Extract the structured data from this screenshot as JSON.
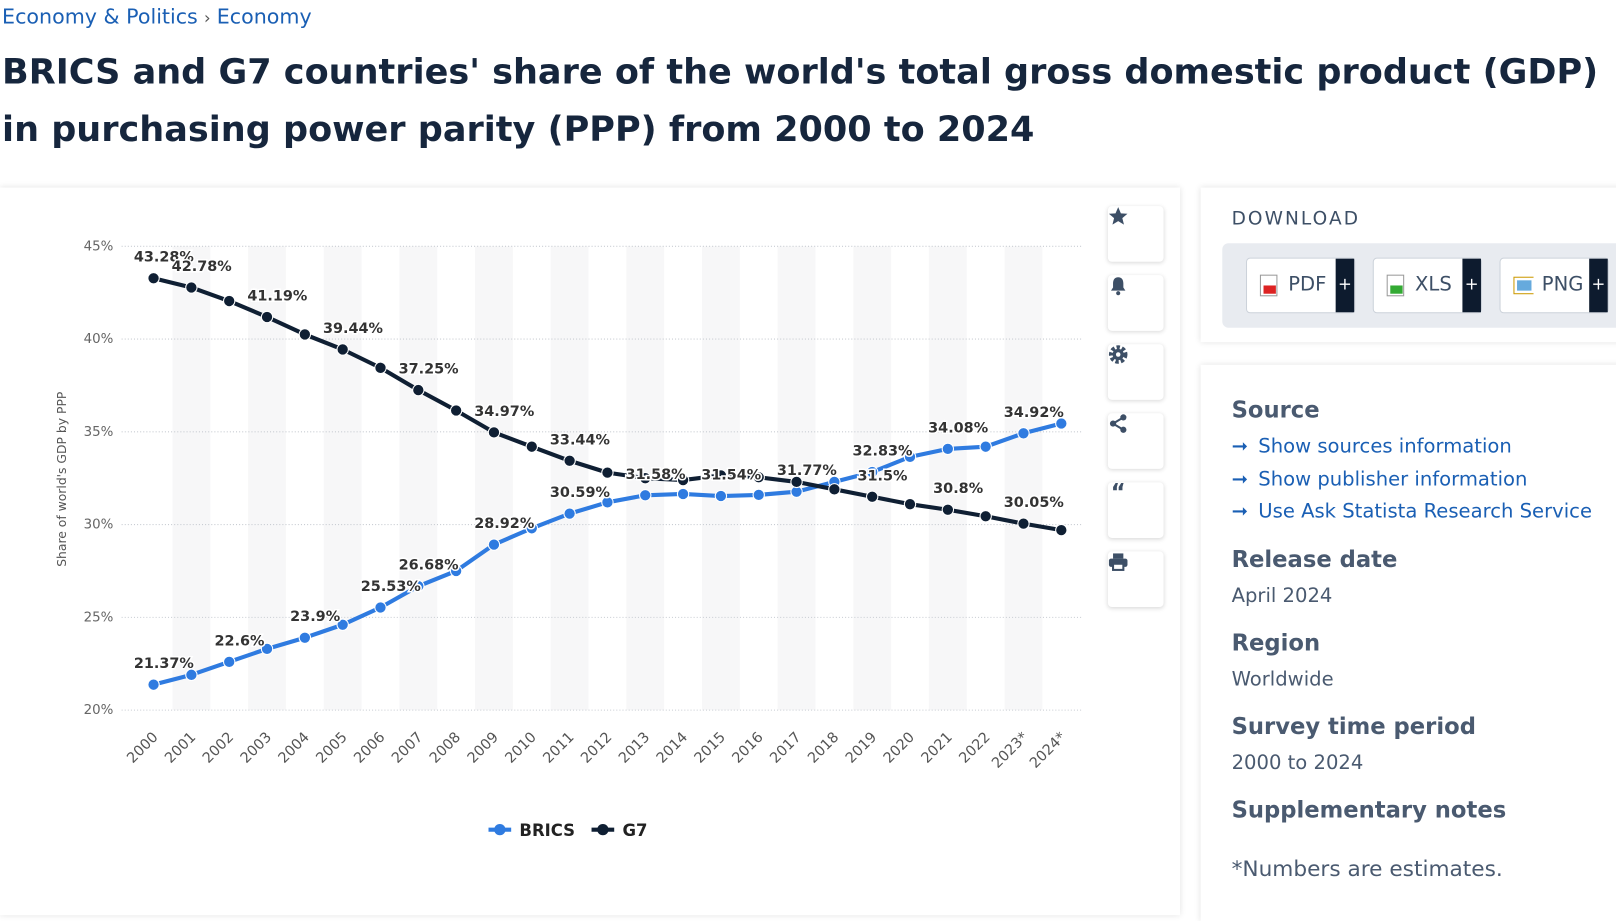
{
  "breadcrumb": [
    "Economy & Politics",
    "Economy"
  ],
  "header": {
    "title": "BRICS and G7 countries' share of the world's total gross domestic product (GDP) in purchasing power parity (PPP) from 2000 to 2024"
  },
  "download": {
    "title": "DOWNLOAD",
    "buttons": [
      {
        "label": "PDF",
        "plus": "+"
      },
      {
        "label": "XLS",
        "plus": "+"
      },
      {
        "label": "PNG",
        "plus": "+"
      }
    ]
  },
  "details": {
    "source": {
      "heading": "Source",
      "links": [
        "Show sources information",
        "Show publisher information",
        "Use Ask Statista Research Service"
      ]
    },
    "release": {
      "heading": "Release date",
      "value": "April 2024"
    },
    "region": {
      "heading": "Region",
      "value": "Worldwide"
    },
    "period": {
      "heading": "Survey time period",
      "value": "2000 to 2024"
    },
    "notes": {
      "heading": "Supplementary notes",
      "value": "*Numbers are estimates."
    }
  },
  "chart_data": {
    "type": "line",
    "ylabel": "Share of world's GDP by PPP",
    "categories": [
      "2000",
      "2001",
      "2002",
      "2003",
      "2004",
      "2005",
      "2006",
      "2007",
      "2008",
      "2009",
      "2010",
      "2011",
      "2012",
      "2013",
      "2014",
      "2015",
      "2016",
      "2017",
      "2018",
      "2019",
      "2020",
      "2021",
      "2022",
      "2023*",
      "2024*"
    ],
    "series": [
      {
        "name": "BRICS",
        "color": "#2f7be0",
        "values": [
          21.37,
          21.9,
          22.6,
          23.3,
          23.9,
          24.6,
          25.53,
          26.68,
          27.5,
          28.92,
          29.8,
          30.59,
          31.2,
          31.58,
          31.65,
          31.54,
          31.6,
          31.77,
          32.3,
          32.83,
          33.65,
          34.08,
          34.2,
          34.92,
          35.45
        ],
        "value_labels": [
          "21.37%",
          null,
          "22.6%",
          null,
          "23.9%",
          null,
          "25.53%",
          "26.68%",
          null,
          "28.92%",
          null,
          "30.59%",
          null,
          "31.58%",
          null,
          "31.54%",
          null,
          "31.77%",
          null,
          "32.83%",
          null,
          "34.08%",
          null,
          "34.92%",
          null
        ]
      },
      {
        "name": "G7",
        "color": "#0f1f33",
        "values": [
          43.28,
          42.78,
          42.05,
          41.19,
          40.25,
          39.44,
          38.45,
          37.25,
          36.15,
          34.97,
          34.2,
          33.44,
          32.8,
          32.5,
          32.4,
          32.65,
          32.55,
          32.3,
          31.9,
          31.5,
          31.1,
          30.8,
          30.45,
          30.05,
          29.7
        ],
        "value_labels": [
          "43.28%",
          "42.78%",
          null,
          "41.19%",
          null,
          "39.44%",
          null,
          "37.25%",
          null,
          "34.97%",
          null,
          "33.44%",
          null,
          null,
          null,
          null,
          null,
          null,
          null,
          "31.5%",
          null,
          "30.8%",
          null,
          "30.05%",
          null
        ]
      }
    ],
    "ylim": [
      20,
      45
    ],
    "yticks": [
      {
        "value": 20,
        "label": "20%"
      },
      {
        "value": 25,
        "label": "25%"
      },
      {
        "value": 30,
        "label": "30%"
      },
      {
        "value": 35,
        "label": "35%"
      },
      {
        "value": 40,
        "label": "40%"
      },
      {
        "value": 45,
        "label": "45%"
      }
    ],
    "grid": true,
    "legend": "bottom"
  }
}
